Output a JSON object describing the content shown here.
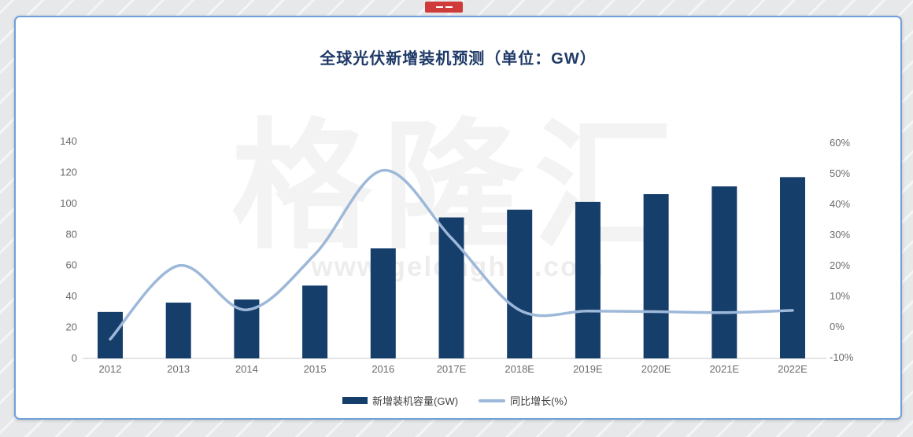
{
  "top_badge": {
    "color": "#cf3a3a"
  },
  "watermark": {
    "text_large": "格隆汇",
    "text_url": "www.gelonghui.com"
  },
  "chart_data": {
    "type": "bar",
    "title": "全球光伏新增装机预测（单位：GW）",
    "categories": [
      "2012",
      "2013",
      "2014",
      "2015",
      "2016",
      "2017E",
      "2018E",
      "2019E",
      "2020E",
      "2021E",
      "2022E"
    ],
    "series": [
      {
        "name": "新增装机容量(GW)",
        "kind": "bar",
        "axis": "left",
        "color": "#163e6b",
        "values": [
          30,
          36,
          38,
          47,
          71,
          91,
          96,
          101,
          106,
          111,
          117
        ]
      },
      {
        "name": "同比增长(%）",
        "kind": "line",
        "axis": "right",
        "color": "#9db8d9",
        "values": [
          -4,
          20,
          5.6,
          23.7,
          51.1,
          29,
          5.5,
          5.2,
          5.0,
          4.7,
          5.4
        ]
      }
    ],
    "left_axis": {
      "min": 0,
      "max": 140,
      "step": 20,
      "tick_labels": [
        "0",
        "20",
        "40",
        "60",
        "80",
        "100",
        "120",
        "140"
      ]
    },
    "right_axis": {
      "min": -10,
      "max": 60,
      "step": 10,
      "tick_labels": [
        "-10%",
        "0%",
        "10%",
        "20%",
        "30%",
        "40%",
        "50%",
        "60%"
      ]
    },
    "grid": false,
    "legend_position": "bottom",
    "axis_label_color": "#6b6b6b",
    "axis_line_color": "#c9c9c9",
    "title_color": "#1f3a68"
  }
}
